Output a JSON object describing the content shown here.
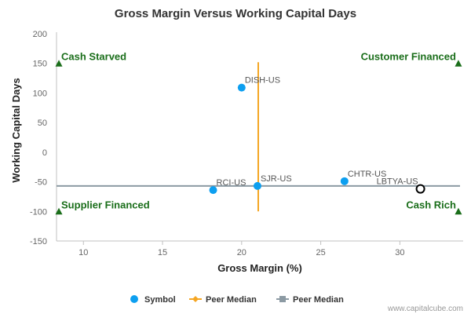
{
  "chart_data": {
    "type": "scatter",
    "title": "Gross Margin Versus Working Capital Days",
    "xlabel": "Gross Margin (%)",
    "ylabel": "Working Capital Days",
    "xlim": [
      8.3,
      34.0
    ],
    "ylim": [
      -150,
      200
    ],
    "xticks": [
      10,
      15,
      20,
      25,
      30
    ],
    "yticks": [
      200,
      150,
      100,
      50,
      0,
      -50,
      -100,
      -150
    ],
    "grid": false,
    "points": [
      {
        "label": "DISH-US",
        "x": 20.0,
        "y": 109,
        "style": "filled"
      },
      {
        "label": "RCI-US",
        "x": 18.2,
        "y": -64,
        "style": "filled"
      },
      {
        "label": "SJR-US",
        "x": 21.0,
        "y": -57,
        "style": "filled"
      },
      {
        "label": "CHTR-US",
        "x": 26.5,
        "y": -49,
        "style": "filled"
      },
      {
        "label": "LBTYA-US",
        "x": 31.3,
        "y": -62,
        "style": "hollow"
      }
    ],
    "peer_median_x": 21.05,
    "peer_median_x_range": [
      -100,
      152
    ],
    "peer_median_y": -57,
    "quadrants": [
      {
        "label": "Cash Starved",
        "corner": "top-left",
        "x": 8.45,
        "y": 150
      },
      {
        "label": "Customer Financed",
        "corner": "top-right",
        "x": 33.7,
        "y": 150
      },
      {
        "label": "Supplier Financed",
        "corner": "bottom-left",
        "x": 8.45,
        "y": -100
      },
      {
        "label": "Cash Rich",
        "corner": "bottom-right",
        "x": 33.7,
        "y": -100
      }
    ],
    "legend": {
      "placement": "bottom",
      "items": [
        {
          "label": "Symbol",
          "kind": "dot"
        },
        {
          "label": "Peer Median",
          "kind": "orange-line"
        },
        {
          "label": "Peer Median",
          "kind": "gray-line"
        }
      ]
    },
    "colors": {
      "point": "#0d9ff0",
      "hollow": "#000000",
      "median_x": "#f5a623",
      "median_y": "#8c9aa3",
      "quadrant": "#1a6e1a"
    }
  },
  "credit": "www.capitalcube.com"
}
